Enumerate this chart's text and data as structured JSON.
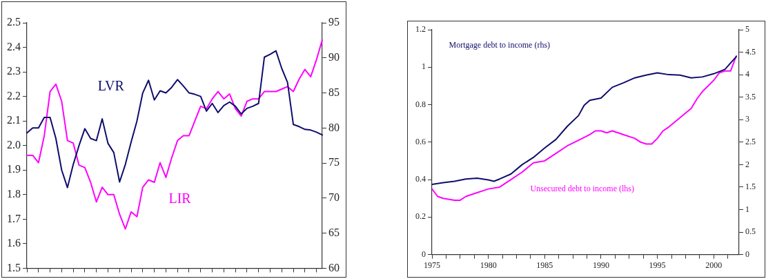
{
  "chart_data": [
    {
      "type": "line",
      "categories": [
        null,
        null,
        null,
        null,
        null,
        null,
        null,
        null,
        null,
        null,
        null,
        null,
        null,
        null,
        null,
        null,
        null,
        null,
        null,
        null,
        null,
        null,
        null,
        null,
        null,
        null,
        null,
        null,
        null,
        null,
        null,
        null,
        null,
        null,
        null,
        null,
        null,
        null,
        null,
        null,
        null,
        null,
        null,
        null,
        null,
        null,
        null,
        null,
        null,
        null,
        null,
        null
      ],
      "series": [
        {
          "name": "LVR",
          "color": "#0d0d6b",
          "axis": "y2",
          "values": [
            79.3,
            80,
            80,
            81.5,
            81.5,
            78.5,
            74,
            71.5,
            74.8,
            77.5,
            79.9,
            78.5,
            78.2,
            81.3,
            77.8,
            76.5,
            72.3,
            74.8,
            78,
            81,
            85,
            86.8,
            84,
            85.3,
            85,
            85.8,
            86.9,
            86,
            85,
            84.8,
            84.5,
            82.4,
            83.5,
            82.2,
            83.2,
            83.7,
            83.1,
            82,
            82.8,
            83.1,
            83.5,
            90.1,
            90.5,
            91,
            88.5,
            86.5,
            80.5,
            80.2,
            79.8,
            79.7,
            79.4,
            79
          ]
        },
        {
          "name": "LIR",
          "color": "#ff00ff",
          "values": [
            1.96,
            1.96,
            1.93,
            2.04,
            2.22,
            2.25,
            2.18,
            2.02,
            2.01,
            1.92,
            1.91,
            1.85,
            1.77,
            1.83,
            1.8,
            1.8,
            1.72,
            1.66,
            1.73,
            1.71,
            1.83,
            1.86,
            1.85,
            1.93,
            1.87,
            1.95,
            2.02,
            2.04,
            2.04,
            2.1,
            2.16,
            2.15,
            2.19,
            2.22,
            2.19,
            2.21,
            2.15,
            2.12,
            2.18,
            2.19,
            2.19,
            2.22,
            2.22,
            2.22,
            2.23,
            2.24,
            2.22,
            2.27,
            2.31,
            2.28,
            2.35,
            2.43
          ]
        }
      ],
      "ylim": [
        1.5,
        2.5
      ],
      "yticks": [
        1.5,
        1.6,
        1.7,
        1.8,
        1.9,
        {
          "value": 2,
          "label": "2.0"
        },
        2.1,
        2.2,
        2.3,
        2.4,
        2.5
      ],
      "y2lim": [
        60,
        95
      ],
      "y2ticks": [
        60,
        65,
        70,
        75,
        80,
        85,
        90,
        95
      ],
      "tick_labels": "y",
      "grid": false,
      "legend": false,
      "marker": "none",
      "line_style": "solid"
    },
    {
      "type": "line",
      "series": [
        {
          "name": "Mortgage debt to income (rhs)",
          "color": "#0d0d6b",
          "axis": "y2",
          "x": [
            1975,
            1976,
            1977,
            1978,
            1979,
            1980,
            1980.5,
            1981,
            1982,
            1983,
            1984,
            1985,
            1986,
            1987,
            1988,
            1988.5,
            1989,
            1990,
            1991,
            1992,
            1993,
            1994,
            1995,
            1996,
            1997,
            1998,
            1999,
            2000,
            2001,
            2001.5,
            2002
          ],
          "values": [
            1.56,
            1.6,
            1.63,
            1.68,
            1.7,
            1.66,
            1.63,
            1.68,
            1.79,
            2.0,
            2.16,
            2.37,
            2.56,
            2.85,
            3.09,
            3.32,
            3.43,
            3.48,
            3.72,
            3.82,
            3.93,
            3.99,
            4.04,
            4.0,
            3.99,
            3.93,
            3.95,
            4.02,
            4.12,
            4.26,
            4.4
          ]
        },
        {
          "name": "Unsecured debt to income (lhs)",
          "color": "#ff00ff",
          "x": [
            1975,
            1975.5,
            1976,
            1977,
            1977.5,
            1978,
            1979,
            1979.5,
            1980,
            1981,
            1982,
            1983,
            1984,
            1985,
            1986,
            1987,
            1988,
            1989,
            1989.5,
            1990,
            1990.5,
            1991,
            1992,
            1993,
            1993.5,
            1994,
            1994.5,
            1995,
            1995.5,
            1996,
            1997,
            1998,
            1998.5,
            1999,
            2000,
            2000.5,
            2001,
            2001.5,
            2002
          ],
          "values": [
            0.35,
            0.31,
            0.3,
            0.29,
            0.29,
            0.31,
            0.33,
            0.34,
            0.35,
            0.36,
            0.4,
            0.44,
            0.49,
            0.5,
            0.54,
            0.58,
            0.61,
            0.64,
            0.66,
            0.66,
            0.65,
            0.66,
            0.64,
            0.62,
            0.6,
            0.59,
            0.59,
            0.62,
            0.66,
            0.68,
            0.73,
            0.78,
            0.83,
            0.87,
            0.93,
            0.97,
            0.98,
            0.98,
            1.06
          ]
        }
      ],
      "xlim": [
        1975,
        2002.25
      ],
      "xticks": [
        1975,
        {
          "value": 1976.25,
          "label": null
        },
        {
          "value": 1977.5,
          "label": null
        },
        {
          "value": 1978.75,
          "label": null
        },
        1980,
        {
          "value": 1981.25,
          "label": null
        },
        {
          "value": 1982.5,
          "label": null
        },
        {
          "value": 1983.75,
          "label": null
        },
        1985,
        {
          "value": 1986.25,
          "label": null
        },
        {
          "value": 1987.5,
          "label": null
        },
        {
          "value": 1988.75,
          "label": null
        },
        1990,
        {
          "value": 1991.25,
          "label": null
        },
        {
          "value": 1992.5,
          "label": null
        },
        {
          "value": 1993.75,
          "label": null
        },
        1995,
        {
          "value": 1996.25,
          "label": null
        },
        {
          "value": 1997.5,
          "label": null
        },
        {
          "value": 1998.75,
          "label": null
        },
        2000,
        {
          "value": 2001.25,
          "label": null
        }
      ],
      "ylim": [
        0,
        1.2
      ],
      "yticks": [
        0,
        0.2,
        0.4,
        0.6,
        0.8,
        1,
        1.2
      ],
      "y2lim": [
        0,
        5
      ],
      "y2ticks": [
        0,
        0.5,
        1,
        1.5,
        2,
        2.5,
        3,
        3.5,
        4,
        4.5,
        5
      ],
      "grid": false,
      "legend": false,
      "marker": "none",
      "line_style": "solid"
    }
  ]
}
